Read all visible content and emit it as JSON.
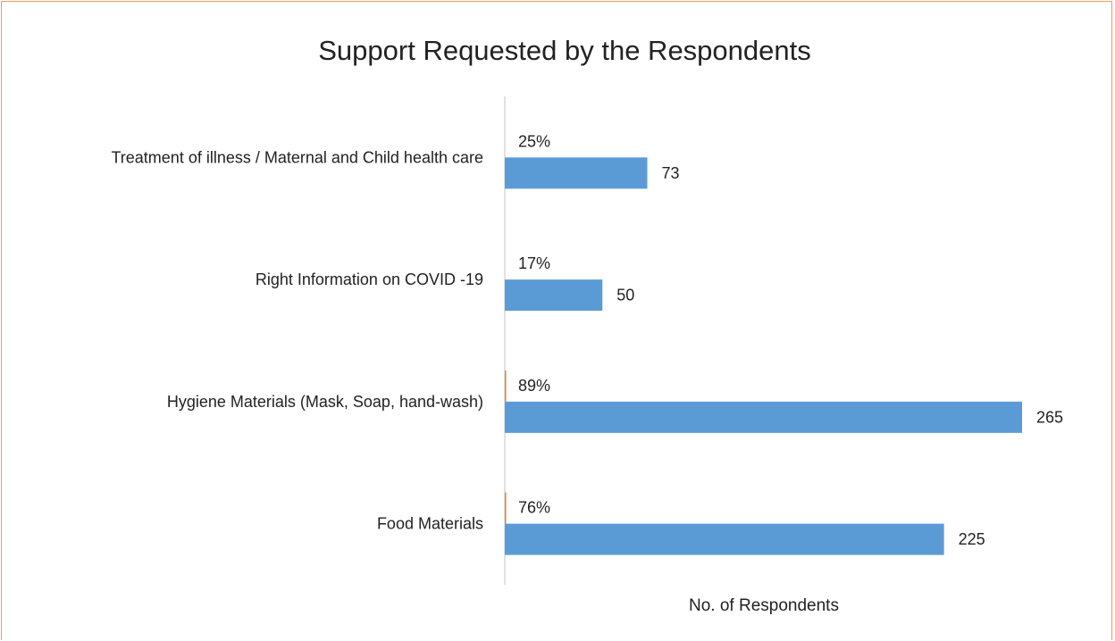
{
  "chart_data": {
    "type": "bar",
    "orientation": "horizontal",
    "title": "Support Requested by the Respondents",
    "xlabel": "No. of Respondents",
    "ylabel": "",
    "categories": [
      "Treatment of illness / Maternal and Child health care",
      "Right Information on COVID -19",
      "Hygiene Materials (Mask, Soap, hand-wash)",
      "Food Materials"
    ],
    "series": [
      {
        "values": [
          25,
          17,
          89,
          76
        ],
        "labels": [
          "25%",
          "17%",
          "89%",
          "76%"
        ],
        "color": "#ED7D31"
      },
      {
        "values": [
          73,
          50,
          265,
          225
        ],
        "labels": [
          "73",
          "50",
          "265",
          "225"
        ],
        "color": "#5B9BD5"
      }
    ],
    "xlim": [
      0,
      265
    ],
    "grid": false,
    "legend": "none",
    "frame_color": "#ED9B5C"
  }
}
